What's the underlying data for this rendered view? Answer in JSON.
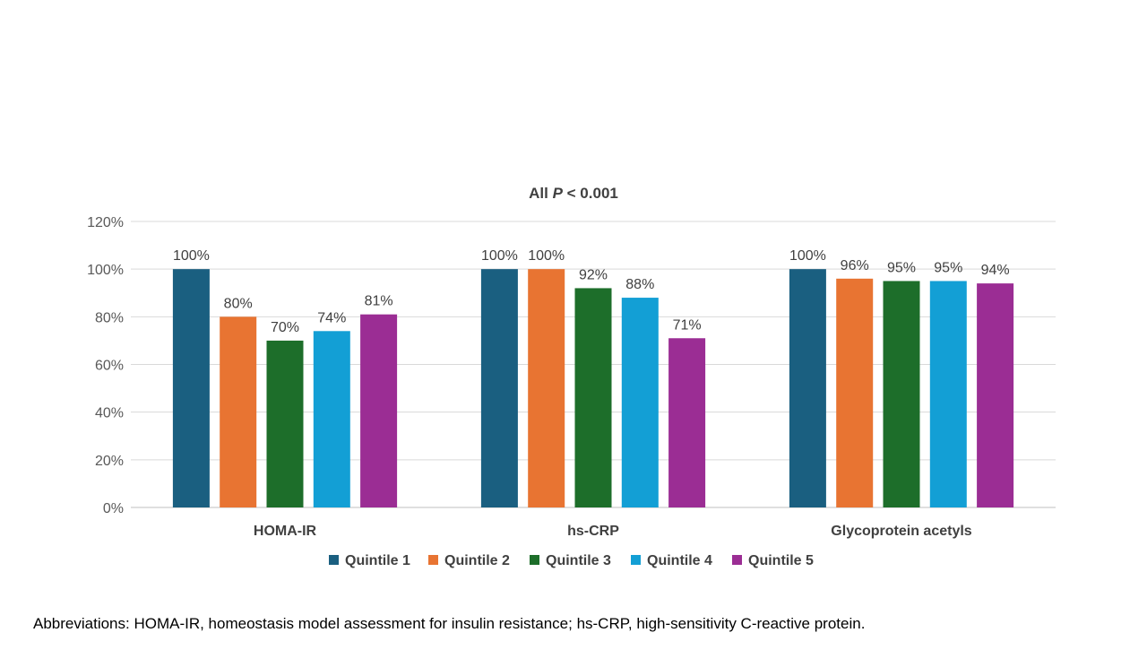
{
  "chart_data": {
    "type": "bar",
    "title": {
      "prefix": "All ",
      "italic": "P",
      "suffix": " < 0.001"
    },
    "categories": [
      "HOMA-IR",
      "hs-CRP",
      "Glycoprotein acetyls"
    ],
    "series": [
      {
        "name": "Quintile 1",
        "color": "#1a5f80",
        "values": [
          100,
          100,
          100
        ]
      },
      {
        "name": "Quintile 2",
        "color": "#e87432",
        "values": [
          80,
          100,
          96
        ]
      },
      {
        "name": "Quintile 3",
        "color": "#1d6e2a",
        "values": [
          70,
          92,
          95
        ]
      },
      {
        "name": "Quintile 4",
        "color": "#139fd5",
        "values": [
          74,
          88,
          95
        ]
      },
      {
        "name": "Quintile 5",
        "color": "#9b2d94",
        "values": [
          81,
          71,
          94
        ]
      }
    ],
    "data_labels": [
      [
        "100%",
        "100%",
        "100%"
      ],
      [
        "80%",
        "100%",
        "96%"
      ],
      [
        "70%",
        "92%",
        "95%"
      ],
      [
        "74%",
        "88%",
        "95%"
      ],
      [
        "81%",
        "71%",
        "94%"
      ]
    ],
    "yticks": [
      0,
      20,
      40,
      60,
      80,
      100,
      120
    ],
    "ytick_labels": [
      "0%",
      "20%",
      "40%",
      "60%",
      "80%",
      "100%",
      "120%"
    ],
    "ylim": [
      0,
      120
    ],
    "xlabel": "",
    "ylabel": "",
    "grid": true,
    "legend_position": "bottom"
  },
  "footnote": "Abbreviations: HOMA-IR, homeostasis model assessment for insulin resistance; hs-CRP, high-sensitivity C-reactive protein."
}
